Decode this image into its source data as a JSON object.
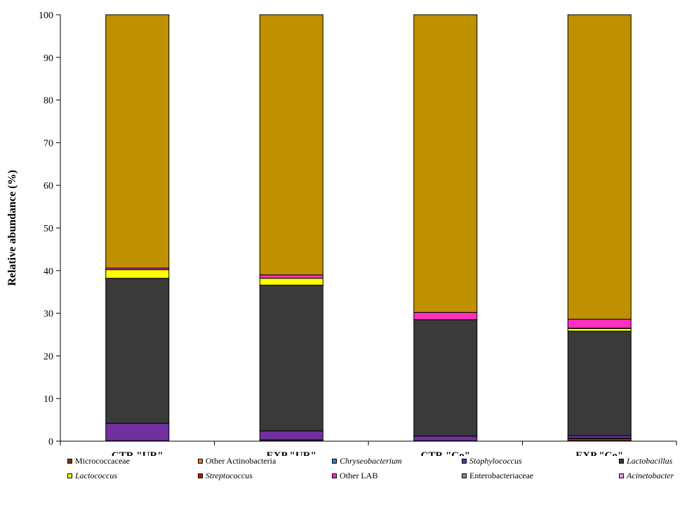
{
  "chart_data": {
    "type": "bar",
    "stacked": true,
    "ylabel": "Relative abundance (%)",
    "xlabel": "",
    "ylim": [
      0,
      100
    ],
    "yticks": [
      0,
      10,
      20,
      30,
      40,
      50,
      60,
      70,
      80,
      90,
      100
    ],
    "categories": [
      "CTR \"UR\"",
      "EXP \"UR\"",
      "CTR \"Co\"",
      "EXP \"Co\""
    ],
    "series": [
      {
        "name": "Micrococcaceae",
        "italic": false,
        "color": "#7a3b10",
        "values": [
          0.1,
          0.2,
          0.1,
          0.3
        ]
      },
      {
        "name": "Other Actinobacteria",
        "italic": false,
        "color": "#e8762d",
        "values": [
          0.0,
          0.1,
          0.0,
          0.3
        ]
      },
      {
        "name": "Chryseobacterium",
        "italic": true,
        "color": "#2e86c1",
        "values": [
          0.0,
          0.0,
          0.0,
          0.1
        ]
      },
      {
        "name": "Staphylococcus",
        "italic": true,
        "color": "#7030a0",
        "values": [
          4.1,
          2.1,
          1.1,
          0.6
        ]
      },
      {
        "name": "Lactobacillus",
        "italic": true,
        "color": "#3a3a3a",
        "values": [
          34.0,
          34.2,
          27.3,
          24.5
        ]
      },
      {
        "name": "Lactococcus",
        "italic": true,
        "color": "#ffff00",
        "values": [
          2.0,
          1.6,
          0.0,
          0.6
        ]
      },
      {
        "name": "Streptococcus",
        "italic": true,
        "color": "#e00000",
        "values": [
          0.0,
          0.0,
          0.0,
          0.1
        ]
      },
      {
        "name": "Other LAB",
        "italic": false,
        "color": "#ff2fc0",
        "values": [
          0.4,
          0.8,
          1.7,
          2.1
        ]
      },
      {
        "name": "Enterobacteriaceae",
        "italic": false,
        "color": "#8c8c8c",
        "values": [
          0.0,
          0.0,
          0.0,
          0.0
        ]
      },
      {
        "name": "Acinetobacter",
        "italic": true,
        "color": "#ff99e6",
        "values": [
          0.0,
          0.0,
          0.0,
          0.0
        ]
      },
      {
        "name": "",
        "italic": false,
        "color": "#bf9000",
        "values": [
          59.4,
          61.0,
          69.8,
          71.4
        ]
      }
    ]
  }
}
